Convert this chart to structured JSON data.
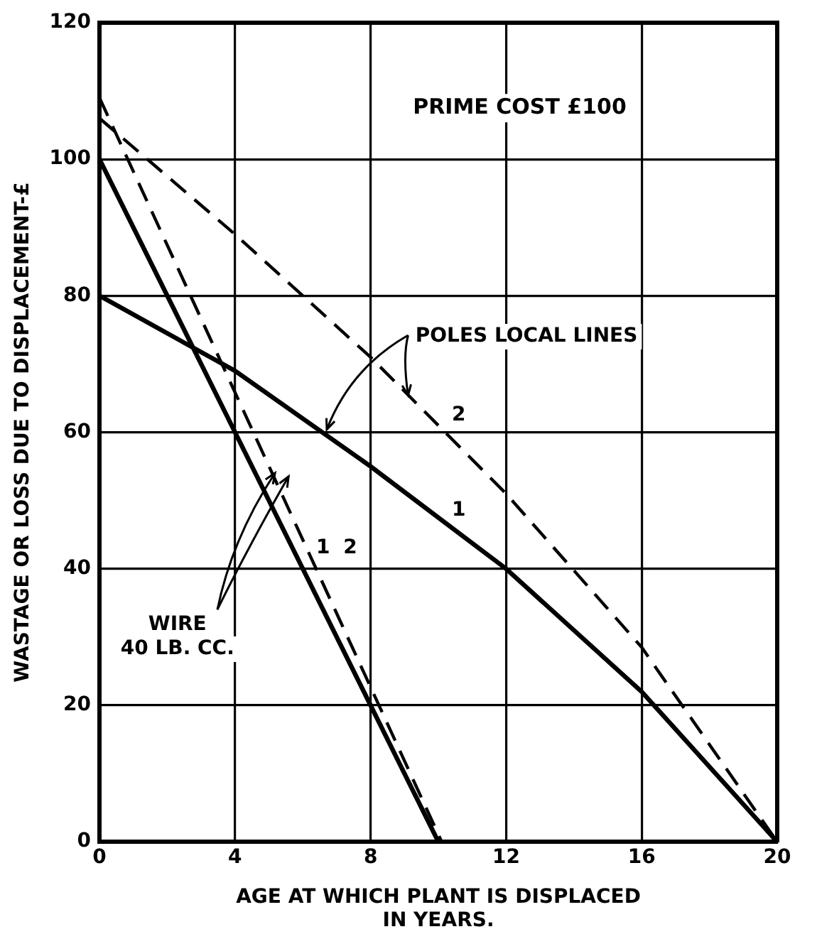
{
  "chart_data": {
    "type": "line",
    "title": "PRIME COST £100",
    "xlabel": "AGE AT WHICH PLANT IS DISPLACED\nIN YEARS.",
    "ylabel": "WASTAGE OR LOSS DUE TO DISPLACEMENT-£",
    "xlim": [
      0,
      20
    ],
    "xticks": [
      0,
      4,
      8,
      12,
      16,
      20
    ],
    "ylim": [
      0,
      120
    ],
    "yticks": [
      0,
      20,
      40,
      60,
      80,
      100,
      120
    ],
    "grid": true,
    "legend": false,
    "marker": "none",
    "series": [
      {
        "color": "#000000",
        "line_style": "solid",
        "x": [
          0,
          10
        ],
        "values": [
          100,
          0
        ]
      },
      {
        "color": "#000000",
        "line_style": "dashed",
        "x": [
          0,
          10.1
        ],
        "values": [
          109,
          0
        ]
      },
      {
        "color": "#000000",
        "line_style": "solid",
        "x": [
          0,
          4,
          8,
          12,
          16,
          20
        ],
        "values": [
          80,
          69,
          55,
          40,
          22,
          0
        ]
      },
      {
        "color": "#000000",
        "line_style": "dashed",
        "x": [
          0,
          4,
          8,
          12,
          16,
          20
        ],
        "values": [
          106,
          89,
          71,
          51,
          28.5,
          0
        ]
      }
    ],
    "annotations": [
      {
        "text": "POLES LOCAL LINES",
        "x": 6.7,
        "y": 60.5
      },
      {
        "text": "WIRE\n40 LB. CC.",
        "x": 5.2,
        "y": 54
      },
      "1",
      "2",
      "1",
      "2"
    ]
  }
}
